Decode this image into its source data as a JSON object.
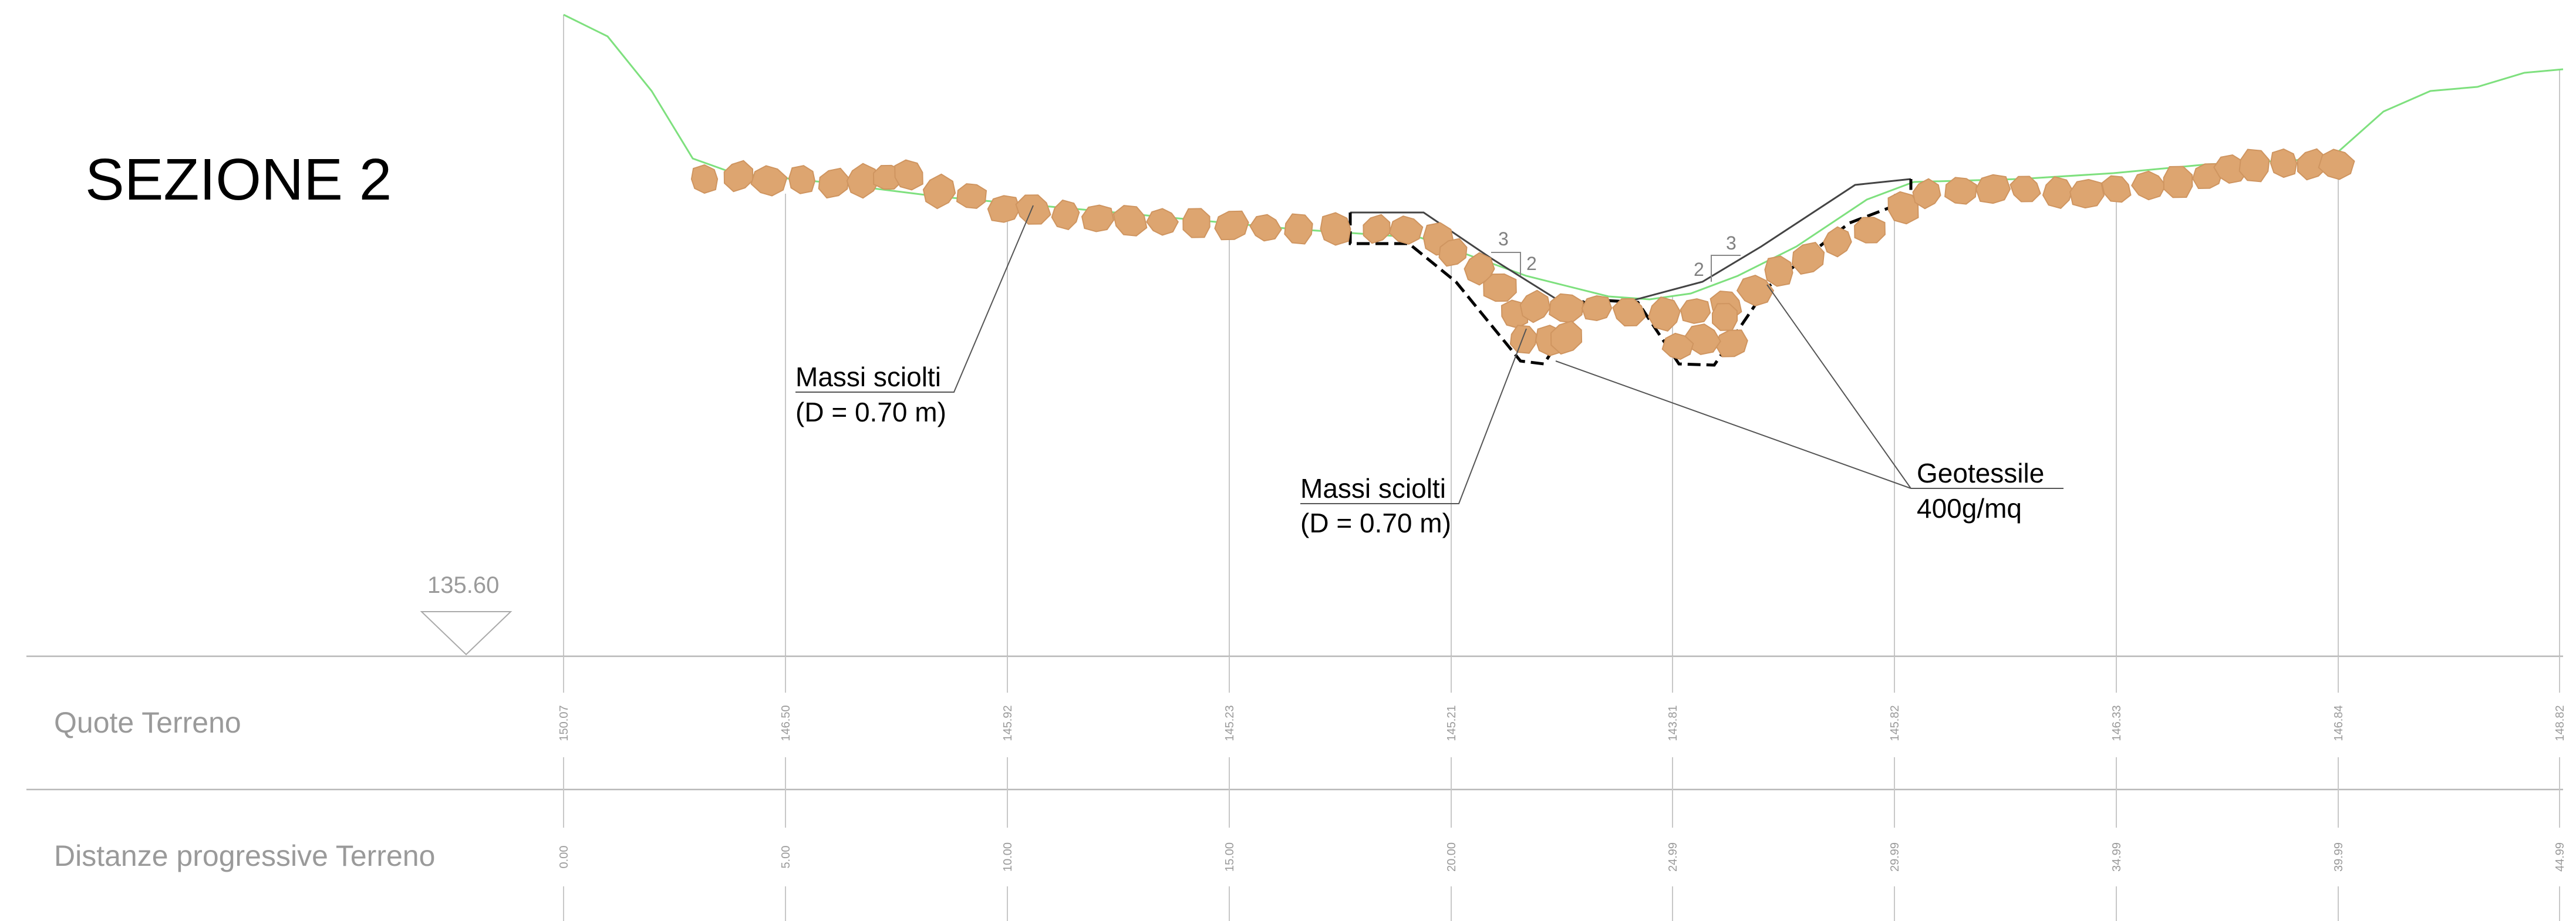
{
  "title": "SEZIONE 2",
  "datum": {
    "label": "135.60"
  },
  "rows": {
    "quote_label": "Quote Terreno",
    "distanze_label": "Distanze progressive Terreno"
  },
  "stations": [
    {
      "distance": "0.00",
      "elevation": "150.07"
    },
    {
      "distance": "5.00",
      "elevation": "146.50"
    },
    {
      "distance": "10.00",
      "elevation": "145.92"
    },
    {
      "distance": "15.00",
      "elevation": "145.23"
    },
    {
      "distance": "20.00",
      "elevation": "145.21"
    },
    {
      "distance": "24.99",
      "elevation": "143.81"
    },
    {
      "distance": "29.99",
      "elevation": "145.82"
    },
    {
      "distance": "34.99",
      "elevation": "146.33"
    },
    {
      "distance": "39.99",
      "elevation": "146.84"
    },
    {
      "distance": "44.99",
      "elevation": "148.82"
    }
  ],
  "annotations": {
    "massi_left": {
      "line1": "Massi sciolti",
      "line2": "(D = 0.70 m)"
    },
    "massi_center": {
      "line1": "Massi sciolti",
      "line2": "(D = 0.70 m)"
    },
    "geotessile": {
      "line1": "Geotessile",
      "line2": "400g/mq"
    }
  },
  "slopes": {
    "left_h": "3",
    "left_v": "2",
    "right_h": "3",
    "right_v": "2"
  },
  "colors": {
    "terrain": "#7ee07e",
    "rock": "#DDA570",
    "grid": "#c8c8c8",
    "label": "#9a9a9a"
  }
}
